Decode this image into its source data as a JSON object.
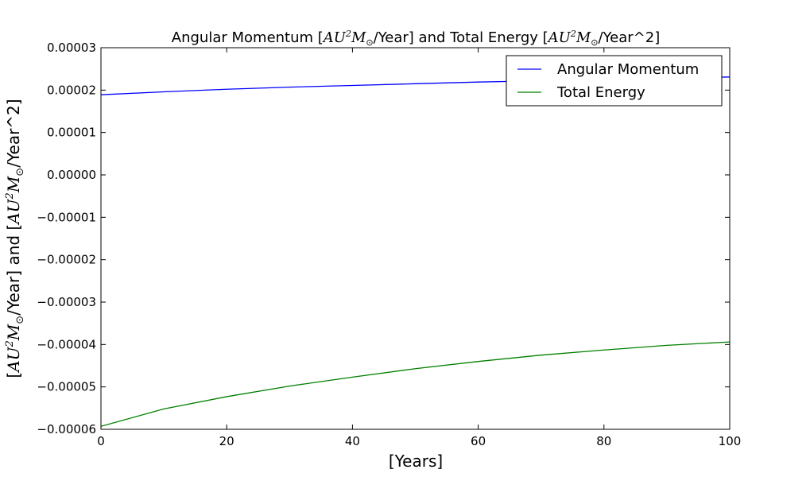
{
  "chart_data": {
    "type": "line",
    "title_parts": {
      "t1": "Angular Momentum [",
      "t2": "/Year] and Total Energy [",
      "t3": "/Year^2]"
    },
    "math_unit": {
      "au": "AU",
      "sup": "2",
      "m": "M",
      "sun": "⊙"
    },
    "xlabel": "[Years]",
    "ylabel_parts": {
      "p1": "[",
      "p2": "/Year] and [",
      "p3": "/Year^2]"
    },
    "xlim": [
      0,
      100
    ],
    "ylim": [
      -6e-05,
      3e-05
    ],
    "x_ticks": [
      0,
      20,
      40,
      60,
      80,
      100
    ],
    "x_tick_labels": [
      "0",
      "20",
      "40",
      "60",
      "80",
      "100"
    ],
    "y_ticks": [
      3e-05,
      2e-05,
      1e-05,
      0,
      -1e-05,
      -2e-05,
      -3e-05,
      -4e-05,
      -5e-05,
      -6e-05
    ],
    "y_tick_labels": [
      "0.00003",
      "0.00002",
      "0.00001",
      "0.00000",
      "−0.00001",
      "−0.00002",
      "−0.00003",
      "−0.00004",
      "−0.00005",
      "−0.00006"
    ],
    "legend_position": "top-right",
    "grid": false,
    "series": [
      {
        "name": "Angular Momentum",
        "color": "#0000ff",
        "x": [
          0,
          10,
          20,
          30,
          40,
          50,
          60,
          70,
          80,
          90,
          100
        ],
        "y": [
          1.89e-05,
          1.96e-05,
          2.02e-05,
          2.07e-05,
          2.11e-05,
          2.15e-05,
          2.19e-05,
          2.22e-05,
          2.25e-05,
          2.28e-05,
          2.31e-05
        ]
      },
      {
        "name": "Total Energy",
        "color": "#008000",
        "x": [
          0,
          10,
          20,
          30,
          40,
          50,
          60,
          70,
          80,
          90,
          100
        ],
        "y": [
          -5.93e-05,
          -5.52e-05,
          -5.23e-05,
          -4.98e-05,
          -4.77e-05,
          -4.57e-05,
          -4.4e-05,
          -4.25e-05,
          -4.13e-05,
          -4.02e-05,
          -3.94e-05
        ]
      }
    ]
  }
}
